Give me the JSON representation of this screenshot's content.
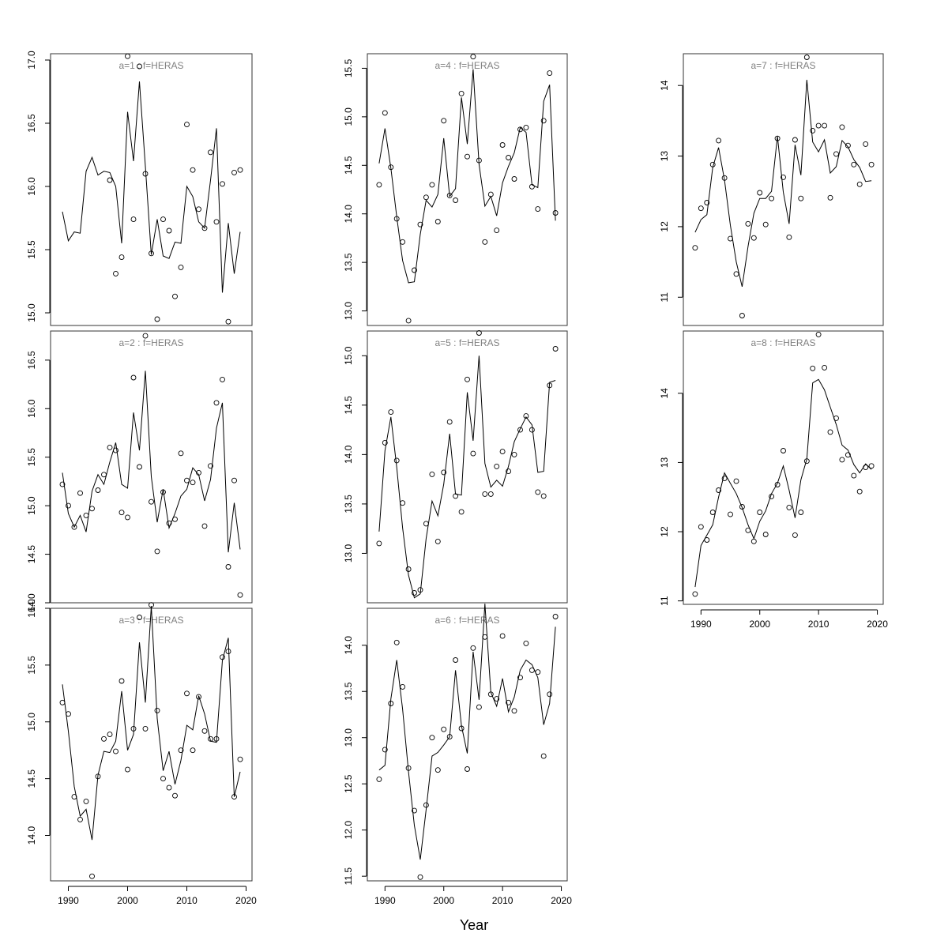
{
  "chart_data": {
    "type": "line",
    "xlabel": "Year",
    "x_axis": {
      "ticks": [
        1990,
        2000,
        2010,
        2020
      ],
      "range": [
        1987,
        2021
      ]
    },
    "colors": {
      "line": "#000000",
      "points": "#000000",
      "title": "#808080"
    },
    "panels": [
      {
        "title": "a=1  :  f=HERAS",
        "ylim": [
          14.9,
          17.05
        ],
        "yticks": [
          15.0,
          15.5,
          16.0,
          16.5,
          17.0
        ],
        "years": [
          1989,
          1990,
          1991,
          1992,
          1993,
          1994,
          1995,
          1996,
          1997,
          1998,
          1999,
          2000,
          2001,
          2002,
          2003,
          2004,
          2005,
          2006,
          2007,
          2008,
          2009,
          2010,
          2011,
          2012,
          2013,
          2014,
          2015,
          2016,
          2017,
          2018,
          2019
        ],
        "fitted": [
          15.8,
          15.57,
          15.64,
          15.63,
          16.12,
          16.23,
          16.09,
          16.12,
          16.11,
          16.0,
          15.55,
          16.59,
          16.2,
          16.83,
          16.16,
          15.46,
          15.74,
          15.45,
          15.43,
          15.56,
          15.55,
          16.0,
          15.92,
          15.72,
          15.67,
          16.05,
          16.46,
          15.16,
          15.71,
          15.31,
          15.64
        ],
        "observed": [
          null,
          null,
          null,
          null,
          null,
          null,
          null,
          null,
          16.05,
          15.31,
          15.44,
          17.03,
          15.74,
          16.95,
          16.1,
          15.47,
          14.95,
          15.74,
          15.65,
          15.13,
          15.36,
          16.49,
          16.13,
          15.82,
          15.67,
          16.27,
          15.72,
          16.02,
          14.93,
          16.11,
          16.13
        ]
      },
      {
        "title": "a=2  :  f=HERAS",
        "ylim": [
          14.0,
          16.8
        ],
        "yticks": [
          14.0,
          14.5,
          15.0,
          15.5,
          16.0,
          16.5
        ],
        "years": [
          1989,
          1990,
          1991,
          1992,
          1993,
          1994,
          1995,
          1996,
          1997,
          1998,
          1999,
          2000,
          2001,
          2002,
          2003,
          2004,
          2005,
          2006,
          2007,
          2008,
          2009,
          2010,
          2011,
          2012,
          2013,
          2014,
          2015,
          2016,
          2017,
          2018,
          2019
        ],
        "fitted": [
          15.34,
          14.92,
          14.78,
          14.9,
          14.73,
          15.15,
          15.32,
          15.22,
          15.45,
          15.65,
          15.22,
          15.18,
          15.96,
          15.57,
          16.39,
          15.3,
          14.83,
          15.17,
          14.77,
          14.92,
          15.1,
          15.17,
          15.39,
          15.32,
          15.05,
          15.27,
          15.8,
          16.06,
          14.52,
          15.03,
          14.55
        ],
        "observed": [
          15.22,
          15.0,
          14.78,
          15.13,
          14.9,
          14.97,
          15.16,
          15.32,
          15.6,
          15.57,
          14.93,
          14.88,
          16.32,
          15.4,
          16.75,
          15.04,
          14.53,
          15.14,
          14.82,
          14.86,
          15.54,
          15.26,
          15.24,
          15.34,
          14.79,
          15.41,
          16.06,
          16.3,
          14.37,
          15.26,
          14.08
        ]
      },
      {
        "title": "a=3  :  f=HERAS",
        "ylim": [
          13.6,
          16.0
        ],
        "yticks": [
          14.0,
          14.5,
          15.0,
          15.5,
          16.0
        ],
        "years": [
          1989,
          1990,
          1991,
          1992,
          1993,
          1994,
          1995,
          1996,
          1997,
          1998,
          1999,
          2000,
          2001,
          2002,
          2003,
          2004,
          2005,
          2006,
          2007,
          2008,
          2009,
          2010,
          2011,
          2012,
          2013,
          2014,
          2015,
          2016,
          2017,
          2018,
          2019
        ],
        "fitted": [
          15.33,
          14.92,
          14.43,
          14.17,
          14.23,
          13.96,
          14.53,
          14.74,
          14.73,
          14.83,
          15.27,
          14.75,
          14.89,
          15.7,
          15.17,
          16.02,
          15.03,
          14.57,
          14.74,
          14.45,
          14.66,
          14.97,
          14.93,
          15.23,
          15.07,
          14.83,
          14.82,
          15.54,
          15.74,
          14.34,
          14.56
        ],
        "observed": [
          15.17,
          15.07,
          14.34,
          14.14,
          14.3,
          13.64,
          14.52,
          14.85,
          14.89,
          14.74,
          15.36,
          14.58,
          14.94,
          15.92,
          14.94,
          16.03,
          15.1,
          14.5,
          14.42,
          14.35,
          14.75,
          15.25,
          14.75,
          15.22,
          14.92,
          14.85,
          14.85,
          15.57,
          15.62,
          14.34,
          14.67
        ]
      },
      {
        "title": "a=4  :  f=HERAS",
        "ylim": [
          12.85,
          15.65
        ],
        "yticks": [
          13.0,
          13.5,
          14.0,
          14.5,
          15.0,
          15.5
        ],
        "years": [
          1989,
          1990,
          1991,
          1992,
          1993,
          1994,
          1995,
          1996,
          1997,
          1998,
          1999,
          2000,
          2001,
          2002,
          2003,
          2004,
          2005,
          2006,
          2007,
          2008,
          2009,
          2010,
          2011,
          2012,
          2013,
          2014,
          2015,
          2016,
          2017,
          2018,
          2019
        ],
        "fitted": [
          14.52,
          14.88,
          14.47,
          13.97,
          13.52,
          13.29,
          13.3,
          13.79,
          14.14,
          14.07,
          14.2,
          14.78,
          14.18,
          14.26,
          15.2,
          14.72,
          15.49,
          14.51,
          14.08,
          14.18,
          13.98,
          14.32,
          14.49,
          14.63,
          14.89,
          14.84,
          14.3,
          14.27,
          15.16,
          15.33,
          13.93
        ],
        "observed": [
          14.3,
          15.04,
          14.48,
          13.95,
          13.71,
          12.9,
          13.42,
          13.89,
          14.17,
          14.3,
          13.92,
          14.96,
          14.19,
          14.14,
          15.24,
          14.59,
          15.62,
          14.55,
          13.71,
          14.2,
          13.83,
          14.71,
          14.58,
          14.36,
          14.87,
          14.89,
          14.28,
          14.05,
          14.96,
          15.45,
          14.01
        ]
      },
      {
        "title": "a=5  :  f=HERAS",
        "ylim": [
          12.5,
          15.25
        ],
        "yticks": [
          13.0,
          13.5,
          14.0,
          14.5,
          15.0
        ],
        "years": [
          1989,
          1990,
          1991,
          1992,
          1993,
          1994,
          1995,
          1996,
          1997,
          1998,
          1999,
          2000,
          2001,
          2002,
          2003,
          2004,
          2005,
          2006,
          2007,
          2008,
          2009,
          2010,
          2011,
          2012,
          2013,
          2014,
          2015,
          2016,
          2017,
          2018,
          2019
        ],
        "fitted": [
          13.22,
          14.04,
          14.38,
          13.87,
          13.26,
          12.78,
          12.55,
          12.59,
          13.15,
          13.53,
          13.38,
          13.7,
          14.21,
          13.6,
          13.59,
          14.63,
          14.14,
          15.0,
          13.91,
          13.67,
          13.74,
          13.68,
          13.88,
          14.13,
          14.26,
          14.38,
          14.3,
          13.82,
          13.83,
          14.73,
          14.75
        ],
        "observed": [
          13.1,
          14.12,
          14.43,
          13.94,
          13.51,
          12.84,
          12.6,
          12.63,
          13.3,
          13.8,
          13.12,
          13.82,
          14.33,
          13.58,
          13.42,
          14.76,
          14.01,
          15.23,
          13.6,
          13.6,
          13.88,
          14.03,
          13.83,
          14.0,
          14.25,
          14.39,
          14.25,
          13.62,
          13.58,
          14.7,
          15.07
        ]
      },
      {
        "title": "a=6  :  f=HERAS",
        "ylim": [
          11.45,
          14.4
        ],
        "yticks": [
          11.5,
          12.0,
          12.5,
          13.0,
          13.5,
          14.0
        ],
        "years": [
          1989,
          1990,
          1991,
          1992,
          1993,
          1994,
          1995,
          1996,
          1997,
          1998,
          1999,
          2000,
          2001,
          2002,
          2003,
          2004,
          2005,
          2006,
          2007,
          2008,
          2009,
          2010,
          2011,
          2012,
          2013,
          2014,
          2015,
          2016,
          2017,
          2018,
          2019
        ],
        "fitted": [
          12.65,
          12.7,
          13.42,
          13.84,
          13.31,
          12.63,
          12.05,
          11.68,
          12.22,
          12.8,
          12.84,
          12.92,
          13.01,
          13.73,
          13.13,
          12.83,
          13.93,
          13.41,
          14.45,
          13.49,
          13.34,
          13.64,
          13.28,
          13.44,
          13.73,
          13.84,
          13.79,
          13.65,
          13.14,
          13.37,
          14.2
        ],
        "observed": [
          12.55,
          12.87,
          13.37,
          14.03,
          13.55,
          12.67,
          12.21,
          11.49,
          12.27,
          13.0,
          12.65,
          13.09,
          13.01,
          13.84,
          13.1,
          12.66,
          13.97,
          13.33,
          14.09,
          13.47,
          13.42,
          14.1,
          13.38,
          13.29,
          13.65,
          14.02,
          13.73,
          13.71,
          12.8,
          13.47,
          14.31
        ]
      },
      {
        "title": "a=7  :  f=HERAS",
        "ylim": [
          10.6,
          14.45
        ],
        "yticks": [
          11,
          12,
          13,
          14
        ],
        "years": [
          1989,
          1990,
          1991,
          1992,
          1993,
          1994,
          1995,
          1996,
          1997,
          1998,
          1999,
          2000,
          2001,
          2002,
          2003,
          2004,
          2005,
          2006,
          2007,
          2008,
          2009,
          2010,
          2011,
          2012,
          2013,
          2014,
          2015,
          2016,
          2017,
          2018,
          2019
        ],
        "fitted": [
          11.92,
          12.1,
          12.17,
          12.84,
          13.12,
          12.66,
          12.02,
          11.5,
          11.15,
          11.72,
          12.19,
          12.4,
          12.4,
          12.5,
          13.28,
          12.49,
          12.04,
          13.16,
          12.73,
          14.08,
          13.2,
          13.06,
          13.23,
          12.76,
          12.85,
          13.22,
          13.13,
          12.95,
          12.84,
          12.64,
          12.65
        ],
        "observed": [
          11.7,
          12.26,
          12.34,
          12.88,
          13.22,
          12.69,
          11.83,
          11.33,
          10.74,
          12.04,
          11.84,
          12.48,
          12.03,
          12.4,
          13.25,
          12.7,
          11.85,
          13.23,
          12.4,
          14.4,
          13.36,
          13.43,
          13.43,
          12.41,
          13.03,
          13.41,
          13.15,
          12.88,
          12.6,
          13.17,
          12.88
        ]
      },
      {
        "title": "a=8  :  f=HERAS",
        "ylim": [
          10.95,
          14.9
        ],
        "yticks": [
          11,
          12,
          13,
          14
        ],
        "years": [
          1989,
          1990,
          1991,
          1992,
          1993,
          1994,
          1995,
          1996,
          1997,
          1998,
          1999,
          2000,
          2001,
          2002,
          2003,
          2004,
          2005,
          2006,
          2007,
          2008,
          2009,
          2010,
          2011,
          2012,
          2013,
          2014,
          2015,
          2016,
          2017,
          2018,
          2019
        ],
        "fitted": [
          11.2,
          11.8,
          11.95,
          12.1,
          12.5,
          12.85,
          12.7,
          12.55,
          12.35,
          12.1,
          11.9,
          12.15,
          12.3,
          12.55,
          12.7,
          12.95,
          12.6,
          12.2,
          12.75,
          13.05,
          14.15,
          14.2,
          14.05,
          13.8,
          13.55,
          13.25,
          13.18,
          12.97,
          12.85,
          12.98,
          12.9
        ],
        "observed": [
          11.1,
          12.07,
          11.88,
          12.28,
          12.6,
          12.77,
          12.25,
          12.73,
          12.36,
          12.02,
          11.86,
          12.28,
          11.96,
          12.51,
          12.68,
          13.17,
          12.35,
          11.95,
          12.28,
          13.02,
          14.36,
          14.85,
          14.37,
          13.44,
          13.64,
          13.04,
          13.11,
          12.81,
          12.58,
          12.93,
          12.95
        ]
      }
    ]
  }
}
